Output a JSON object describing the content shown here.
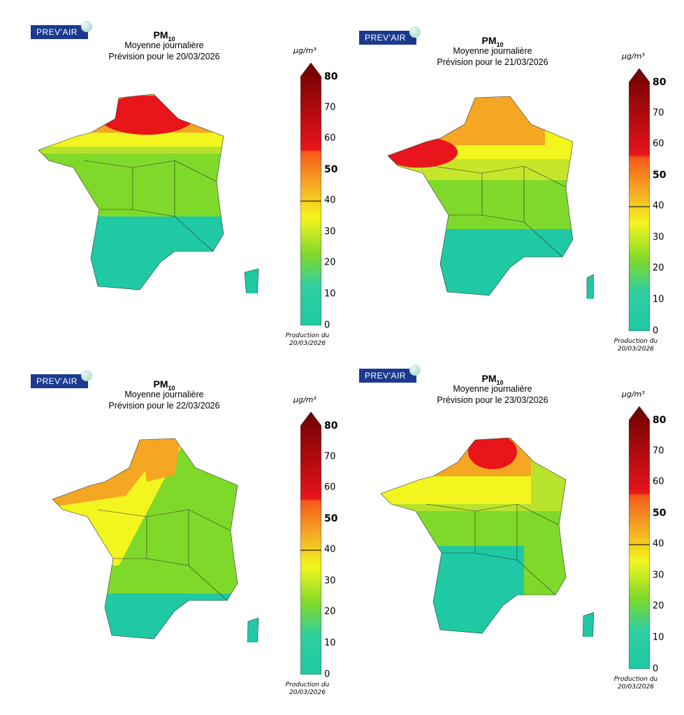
{
  "maps": [
    {
      "logo": "PREV'AIR",
      "pm": "PM",
      "pm_sub": "10",
      "subtitle": "Moyenne journalière",
      "forecast": "Prévision pour le 20/03/2026",
      "unit": "µg/m³",
      "production_label": "Production du",
      "production_date": "20/03/2026"
    },
    {
      "logo": "PREV'AIR",
      "pm": "PM",
      "pm_sub": "10",
      "subtitle": "Moyenne journalière",
      "forecast": "Prévision pour le 21/03/2026",
      "unit": "µg/m³",
      "production_label": "Production du",
      "production_date": "20/03/2026"
    },
    {
      "logo": "PREV'AIR",
      "pm": "PM",
      "pm_sub": "10",
      "subtitle": "Moyenne journalière",
      "forecast": "Prévision pour le 22/03/2026",
      "unit": "µg/m³",
      "production_label": "Production du",
      "production_date": "20/03/2026"
    },
    {
      "logo": "PREV'AIR",
      "pm": "PM",
      "pm_sub": "10",
      "subtitle": "Moyenne journalière",
      "forecast": "Prévision pour le 23/03/2026",
      "unit": "µg/m³",
      "production_label": "Production du",
      "production_date": "20/03/2026"
    }
  ],
  "colorbar": {
    "ticks": [
      "0",
      "10",
      "20",
      "30",
      "40",
      "50",
      "60",
      "70",
      "80"
    ],
    "colors": {
      "c0": "#1ec9a3",
      "c20": "#7fd92a",
      "c30": "#f3f51e",
      "c40": "#f5a623",
      "c50": "#e8151a",
      "c80": "#6e0000"
    }
  }
}
